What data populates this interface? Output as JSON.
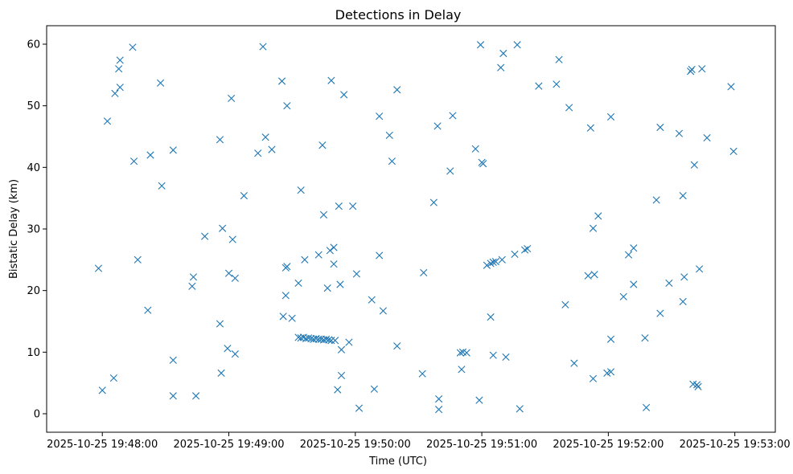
{
  "chart_data": {
    "type": "scatter",
    "title": "Detections in Delay",
    "xlabel": "Time (UTC)",
    "ylabel": "Bistatic Delay (km)",
    "marker": "x",
    "color": "#1f77b4",
    "grid": false,
    "x_unit": "minutes since 2025-10-25 19:48:00",
    "xlim": [
      -0.44,
      5.32
    ],
    "ylim": [
      -3,
      63
    ],
    "x_ticks": [
      {
        "value": 0,
        "label": "2025-10-25 19:48:00"
      },
      {
        "value": 1,
        "label": "2025-10-25 19:49:00"
      },
      {
        "value": 2,
        "label": "2025-10-25 19:50:00"
      },
      {
        "value": 3,
        "label": "2025-10-25 19:51:00"
      },
      {
        "value": 4,
        "label": "2025-10-25 19:52:00"
      },
      {
        "value": 5,
        "label": "2025-10-25 19:53:00"
      }
    ],
    "y_ticks": [
      {
        "value": 0,
        "label": "0"
      },
      {
        "value": 10,
        "label": "10"
      },
      {
        "value": 20,
        "label": "20"
      },
      {
        "value": 30,
        "label": "30"
      },
      {
        "value": 40,
        "label": "40"
      },
      {
        "value": 50,
        "label": "50"
      },
      {
        "value": 60,
        "label": "60"
      }
    ],
    "points": [
      [
        -0.03,
        23.6
      ],
      [
        0.0,
        3.8
      ],
      [
        0.04,
        47.5
      ],
      [
        0.09,
        5.8
      ],
      [
        0.1,
        52.0
      ],
      [
        0.13,
        56.0
      ],
      [
        0.14,
        57.4
      ],
      [
        0.14,
        53.0
      ],
      [
        0.24,
        59.5
      ],
      [
        0.25,
        41.0
      ],
      [
        0.28,
        25.0
      ],
      [
        0.36,
        16.8
      ],
      [
        0.38,
        42.0
      ],
      [
        0.46,
        53.7
      ],
      [
        0.47,
        37.0
      ],
      [
        0.56,
        2.9
      ],
      [
        0.56,
        8.7
      ],
      [
        0.56,
        42.8
      ],
      [
        0.71,
        20.7
      ],
      [
        0.72,
        22.2
      ],
      [
        0.74,
        2.9
      ],
      [
        0.81,
        28.8
      ],
      [
        0.93,
        44.5
      ],
      [
        0.93,
        14.6
      ],
      [
        0.94,
        6.6
      ],
      [
        0.95,
        30.1
      ],
      [
        0.99,
        10.6
      ],
      [
        1.0,
        22.8
      ],
      [
        1.02,
        51.2
      ],
      [
        1.03,
        28.3
      ],
      [
        1.05,
        9.7
      ],
      [
        1.05,
        22.0
      ],
      [
        1.12,
        35.4
      ],
      [
        1.23,
        42.3
      ],
      [
        1.27,
        59.6
      ],
      [
        1.29,
        44.9
      ],
      [
        1.34,
        42.9
      ],
      [
        1.42,
        54.0
      ],
      [
        1.43,
        15.8
      ],
      [
        1.45,
        19.2
      ],
      [
        1.45,
        23.7
      ],
      [
        1.46,
        23.9
      ],
      [
        1.46,
        50.0
      ],
      [
        1.5,
        15.5
      ],
      [
        1.55,
        21.2
      ],
      [
        1.57,
        36.3
      ],
      [
        1.6,
        25.0
      ],
      [
        1.71,
        25.8
      ],
      [
        1.74,
        43.6
      ],
      [
        1.75,
        32.3
      ],
      [
        1.78,
        20.4
      ],
      [
        1.8,
        26.5
      ],
      [
        1.81,
        54.1
      ],
      [
        1.83,
        27.0
      ],
      [
        1.83,
        24.3
      ],
      [
        1.86,
        3.9
      ],
      [
        1.87,
        33.7
      ],
      [
        1.88,
        21.0
      ],
      [
        1.89,
        6.2
      ],
      [
        1.89,
        10.4
      ],
      [
        1.91,
        51.8
      ],
      [
        1.98,
        33.7
      ],
      [
        2.01,
        22.7
      ],
      [
        2.03,
        0.9
      ],
      [
        1.55,
        12.4
      ],
      [
        1.57,
        12.3
      ],
      [
        1.59,
        12.4
      ],
      [
        1.61,
        12.2
      ],
      [
        1.63,
        12.3
      ],
      [
        1.65,
        12.2
      ],
      [
        1.67,
        12.1
      ],
      [
        1.69,
        12.2
      ],
      [
        1.71,
        12.1
      ],
      [
        1.73,
        12.1
      ],
      [
        1.75,
        12.0
      ],
      [
        1.77,
        12.1
      ],
      [
        1.79,
        12.0
      ],
      [
        1.81,
        11.9
      ],
      [
        1.84,
        11.9
      ],
      [
        1.95,
        11.6
      ],
      [
        2.13,
        18.5
      ],
      [
        2.15,
        4.0
      ],
      [
        2.19,
        48.3
      ],
      [
        2.19,
        25.7
      ],
      [
        2.22,
        16.7
      ],
      [
        2.27,
        45.2
      ],
      [
        2.29,
        41.0
      ],
      [
        2.33,
        52.6
      ],
      [
        2.33,
        11.0
      ],
      [
        2.53,
        6.5
      ],
      [
        2.54,
        22.9
      ],
      [
        2.62,
        34.3
      ],
      [
        2.65,
        46.7
      ],
      [
        2.66,
        2.4
      ],
      [
        2.66,
        0.7
      ],
      [
        2.75,
        39.4
      ],
      [
        2.77,
        48.4
      ],
      [
        2.83,
        9.9
      ],
      [
        2.84,
        7.2
      ],
      [
        2.85,
        10.0
      ],
      [
        2.88,
        9.9
      ],
      [
        2.95,
        43.0
      ],
      [
        2.98,
        2.2
      ],
      [
        2.99,
        59.9
      ],
      [
        3.0,
        40.8
      ],
      [
        3.01,
        40.6
      ],
      [
        3.07,
        15.7
      ],
      [
        3.09,
        9.5
      ],
      [
        3.15,
        56.2
      ],
      [
        3.17,
        58.5
      ],
      [
        3.19,
        9.2
      ],
      [
        3.26,
        25.9
      ],
      [
        3.28,
        59.9
      ],
      [
        3.3,
        0.8
      ],
      [
        3.04,
        24.1
      ],
      [
        3.07,
        24.4
      ],
      [
        3.09,
        24.6
      ],
      [
        3.11,
        24.7
      ],
      [
        3.16,
        25.0
      ],
      [
        3.34,
        26.6
      ],
      [
        3.36,
        26.8
      ],
      [
        3.45,
        53.2
      ],
      [
        3.59,
        53.5
      ],
      [
        3.61,
        57.5
      ],
      [
        3.66,
        17.7
      ],
      [
        3.69,
        49.7
      ],
      [
        3.73,
        8.2
      ],
      [
        3.84,
        22.4
      ],
      [
        3.86,
        46.4
      ],
      [
        3.88,
        5.7
      ],
      [
        3.88,
        30.1
      ],
      [
        3.89,
        22.6
      ],
      [
        3.92,
        32.1
      ],
      [
        3.99,
        6.6
      ],
      [
        4.02,
        6.8
      ],
      [
        4.02,
        12.1
      ],
      [
        4.02,
        48.2
      ],
      [
        4.12,
        19.0
      ],
      [
        4.16,
        25.8
      ],
      [
        4.2,
        26.9
      ],
      [
        4.2,
        21.0
      ],
      [
        4.29,
        12.3
      ],
      [
        4.3,
        1.0
      ],
      [
        4.38,
        34.7
      ],
      [
        4.41,
        16.3
      ],
      [
        4.41,
        46.5
      ],
      [
        4.48,
        21.2
      ],
      [
        4.56,
        45.5
      ],
      [
        4.59,
        35.4
      ],
      [
        4.59,
        18.2
      ],
      [
        4.6,
        22.2
      ],
      [
        4.65,
        55.6
      ],
      [
        4.66,
        55.9
      ],
      [
        4.67,
        4.8
      ],
      [
        4.68,
        40.4
      ],
      [
        4.7,
        4.7
      ],
      [
        4.71,
        4.4
      ],
      [
        4.72,
        23.5
      ],
      [
        4.74,
        56.0
      ],
      [
        4.78,
        44.8
      ],
      [
        4.97,
        53.1
      ],
      [
        4.99,
        42.6
      ]
    ]
  }
}
